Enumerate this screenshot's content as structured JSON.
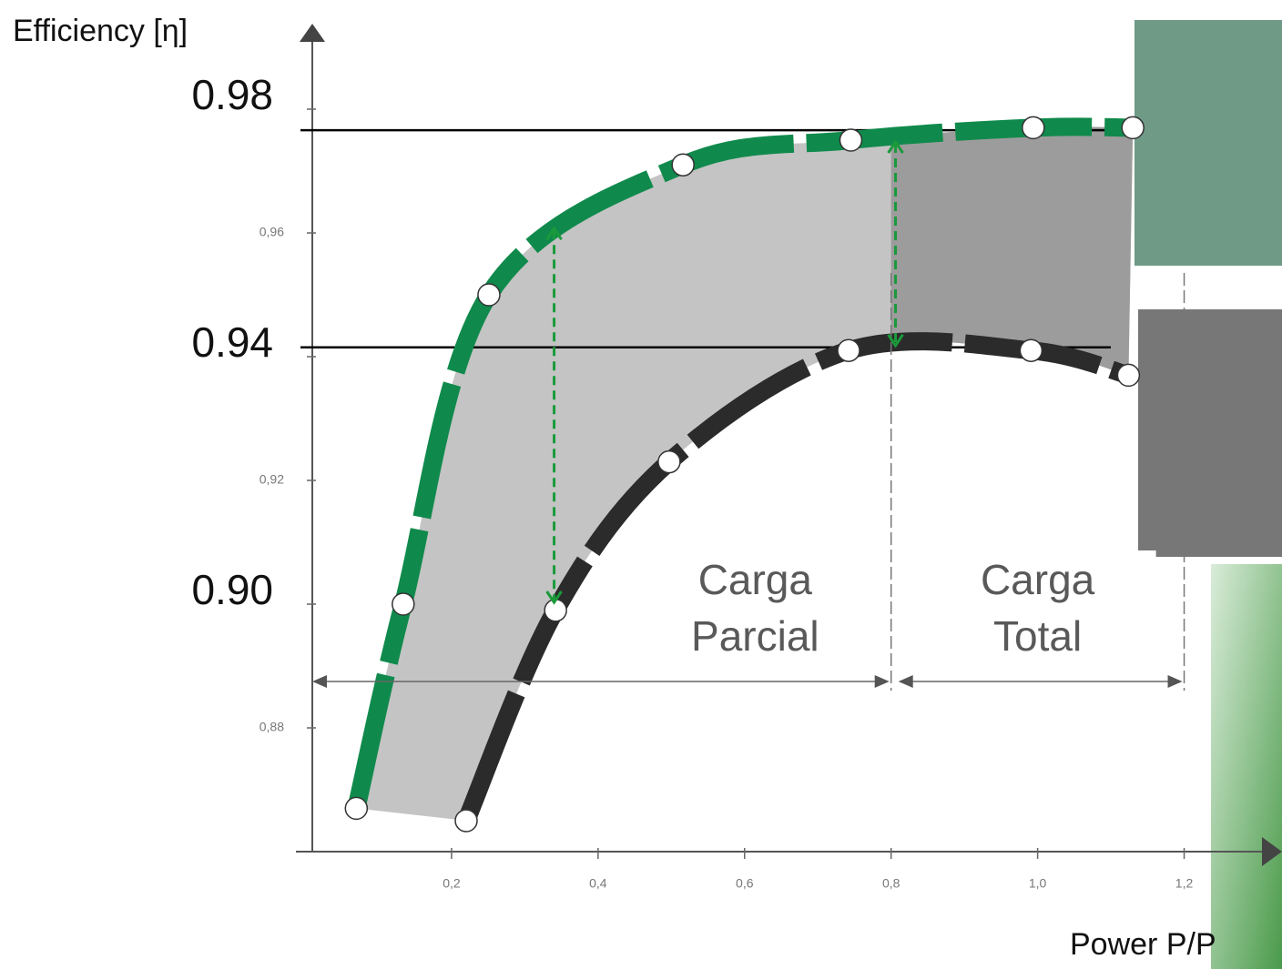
{
  "chart_data": {
    "type": "line",
    "y_label": "Efficiency [η]",
    "x_label": "Power P/P",
    "xlim": [
      0,
      1.3
    ],
    "ylim": [
      0.86,
      0.99
    ],
    "xticks": [
      {
        "value": 0.2,
        "label": "0,2"
      },
      {
        "value": 0.4,
        "label": "0,4"
      },
      {
        "value": 0.6,
        "label": "0,6"
      },
      {
        "value": 0.8,
        "label": "0,8"
      },
      {
        "value": 1.0,
        "label": "1,0"
      },
      {
        "value": 1.2,
        "label": "1,2"
      }
    ],
    "yticks": [
      {
        "value": 0.98,
        "label": "0.98"
      },
      {
        "value": 0.96,
        "label": "0,96"
      },
      {
        "value": 0.94,
        "label": "0.94"
      },
      {
        "value": 0.92,
        "label": "0,92"
      },
      {
        "value": 0.9,
        "label": "0.90"
      },
      {
        "value": 0.88,
        "label": "0,88"
      }
    ],
    "series": [
      {
        "color": "#108a4c",
        "x": [
          0.07,
          0.134,
          0.251,
          0.516,
          0.745,
          0.994,
          1.13
        ],
        "values": [
          0.867,
          0.9,
          0.95,
          0.971,
          0.975,
          0.977,
          0.977
        ]
      },
      {
        "color": "#2b2b2b",
        "x": [
          0.22,
          0.342,
          0.497,
          0.742,
          0.991,
          1.124
        ],
        "values": [
          0.865,
          0.899,
          0.923,
          0.941,
          0.941,
          0.937
        ]
      }
    ],
    "reference_lines": [
      0.9766,
      0.9415
    ],
    "gap_arrows": [
      {
        "x": 0.34,
        "from": 0.961,
        "to": 0.9
      },
      {
        "x": 0.806,
        "from": 0.975,
        "to": 0.9415
      }
    ],
    "regions": [
      {
        "from": 0,
        "to": 0.8,
        "label": [
          "Carga",
          "Parcial"
        ]
      },
      {
        "from": 0.8,
        "to": 1.2,
        "label": [
          "Carga",
          "Total"
        ]
      }
    ]
  }
}
